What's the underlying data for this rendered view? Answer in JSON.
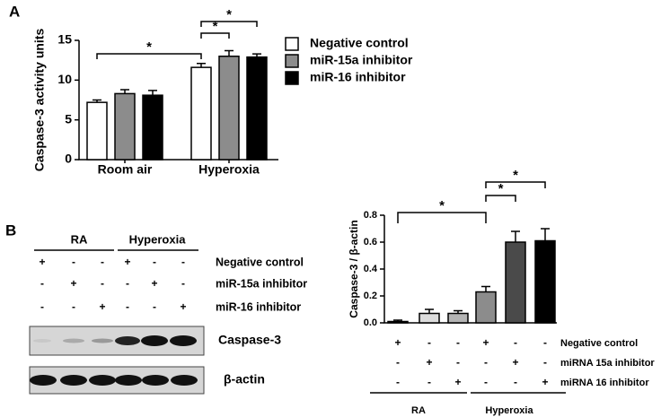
{
  "panel_labels": [
    "A",
    "B"
  ],
  "chart_data": [
    {
      "type": "bar",
      "ylabel": "Caspase-3 activity units",
      "categories": [
        "Room air",
        "Hyperoxia"
      ],
      "series": [
        {
          "name": "Negative control",
          "color": "#ffffff",
          "values": [
            7.2,
            11.6
          ],
          "errors": [
            0.3,
            0.5
          ]
        },
        {
          "name": "miR-15a inhibitor",
          "color": "#8c8c8c",
          "values": [
            8.3,
            13.0
          ],
          "errors": [
            0.5,
            0.7
          ]
        },
        {
          "name": "miR-16 inhibitor",
          "color": "#000000",
          "values": [
            8.1,
            12.9
          ],
          "errors": [
            0.6,
            0.4
          ]
        }
      ],
      "ylim": [
        0,
        15
      ],
      "yticks": [
        0,
        5,
        10,
        15
      ],
      "annotations": [
        "*",
        "*",
        "*"
      ]
    },
    {
      "type": "bar",
      "ylabel": "Caspase-3 / β-actin",
      "values": [
        0.01,
        0.07,
        0.07,
        0.23,
        0.6,
        0.61
      ],
      "errors": [
        0.01,
        0.03,
        0.02,
        0.04,
        0.08,
        0.09
      ],
      "colors": [
        "#ffffff",
        "#dcdcdc",
        "#b4b4b4",
        "#8c8c8c",
        "#4a4a4a",
        "#000000"
      ],
      "ylim": [
        0,
        0.8
      ],
      "yticks": [
        {
          "value": 0,
          "label": "0.0"
        },
        0.2,
        0.4,
        0.6,
        0.8
      ],
      "condition_rows": [
        {
          "name": "Negative control",
          "signs": [
            "+",
            "-",
            "-",
            "+",
            "-",
            "-"
          ]
        },
        {
          "name": "miRNA 15a inhibitor",
          "signs": [
            "-",
            "+",
            "-",
            "-",
            "+",
            "-"
          ]
        },
        {
          "name": "miRNA 16 inhibitor",
          "signs": [
            "-",
            "-",
            "+",
            "-",
            "-",
            "+"
          ]
        }
      ],
      "groups": [
        "RA",
        "Hyperoxia"
      ],
      "annotations": [
        "*",
        "*",
        "*"
      ]
    }
  ],
  "blot": {
    "groups": [
      "RA",
      "Hyperoxia"
    ],
    "rows": [
      {
        "name": "Negative control",
        "signs": [
          "+",
          "-",
          "-",
          "+",
          "-",
          "-"
        ]
      },
      {
        "name": "miR-15a inhibitor",
        "signs": [
          "-",
          "+",
          "-",
          "-",
          "+",
          "-"
        ]
      },
      {
        "name": "miR-16 inhibitor",
        "signs": [
          "-",
          "-",
          "+",
          "-",
          "-",
          "+"
        ]
      }
    ],
    "bands": [
      "Caspase-3",
      "β-actin"
    ]
  }
}
